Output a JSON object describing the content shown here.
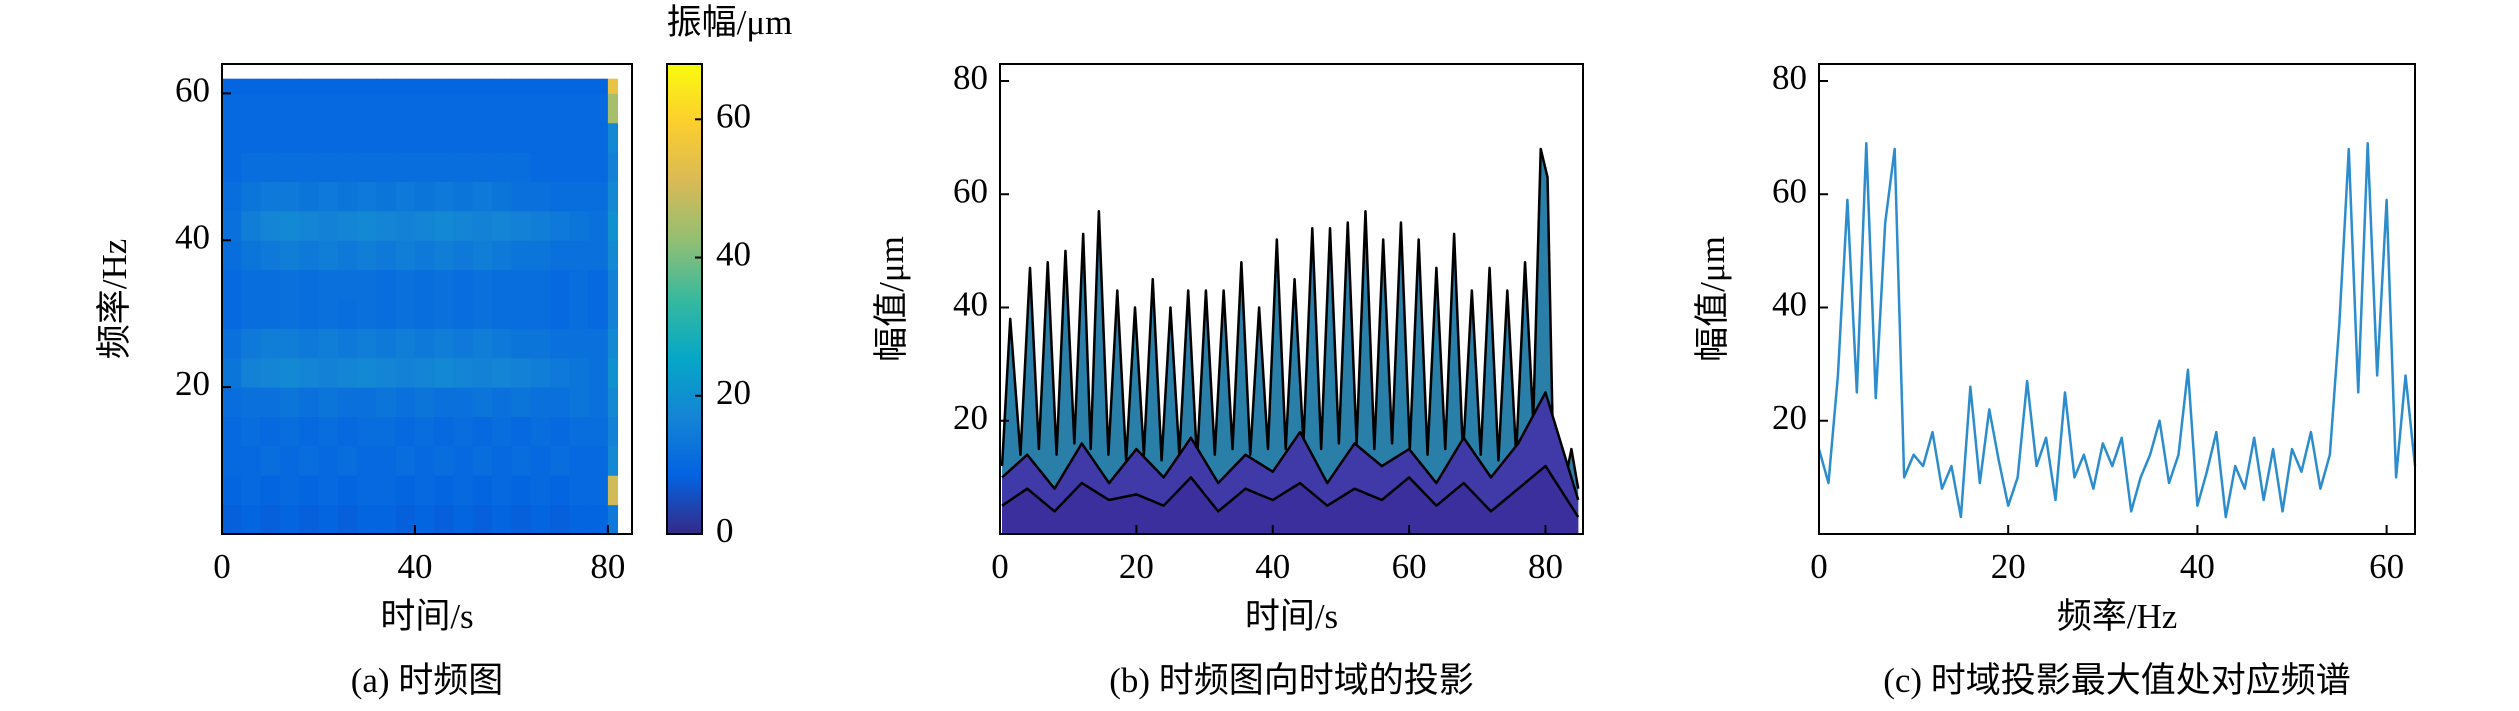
{
  "chart_data": [
    {
      "type": "heatmap",
      "caption": "(a) 时频图",
      "xlabel": "时间/s",
      "ylabel": "频率/Hz",
      "colorbar_label": "振幅/μm",
      "colormap": "parula",
      "xbins": [
        0,
        4,
        8,
        12,
        16,
        20,
        24,
        28,
        32,
        36,
        40,
        44,
        48,
        52,
        56,
        60,
        64,
        68,
        72,
        76,
        80,
        82
      ],
      "ybins": [
        0,
        4,
        8,
        12,
        16,
        20,
        24,
        28,
        32,
        36,
        40,
        44,
        48,
        52,
        56,
        60,
        62
      ],
      "z": [
        [
          8,
          9,
          8,
          9,
          8,
          9,
          8,
          9,
          9,
          8,
          9,
          8,
          9,
          8,
          9,
          8,
          9,
          8,
          9,
          9,
          14
        ],
        [
          9,
          10,
          9,
          10,
          9,
          10,
          9,
          10,
          10,
          9,
          10,
          9,
          10,
          9,
          10,
          9,
          10,
          9,
          10,
          10,
          50
        ],
        [
          10,
          10,
          11,
          10,
          11,
          10,
          11,
          10,
          10,
          11,
          10,
          11,
          10,
          11,
          10,
          11,
          10,
          11,
          10,
          10,
          18
        ],
        [
          10,
          11,
          10,
          11,
          10,
          11,
          10,
          11,
          11,
          10,
          11,
          10,
          11,
          10,
          11,
          10,
          11,
          10,
          11,
          11,
          16
        ],
        [
          11,
          12,
          12,
          13,
          12,
          13,
          12,
          12,
          13,
          12,
          13,
          12,
          12,
          13,
          12,
          13,
          12,
          12,
          13,
          12,
          18
        ],
        [
          13,
          16,
          17,
          18,
          17,
          16,
          17,
          18,
          17,
          16,
          17,
          18,
          17,
          16,
          17,
          16,
          15,
          14,
          13,
          12,
          20
        ],
        [
          12,
          14,
          15,
          15,
          14,
          15,
          14,
          15,
          14,
          15,
          14,
          15,
          14,
          15,
          14,
          13,
          13,
          12,
          12,
          12,
          18
        ],
        [
          10,
          11,
          11,
          12,
          11,
          12,
          11,
          12,
          11,
          12,
          11,
          12,
          11,
          12,
          11,
          11,
          11,
          10,
          11,
          10,
          16
        ],
        [
          10,
          11,
          11,
          12,
          11,
          12,
          12,
          12,
          11,
          12,
          11,
          12,
          11,
          12,
          11,
          11,
          11,
          10,
          11,
          10,
          16
        ],
        [
          11,
          13,
          14,
          15,
          14,
          15,
          14,
          15,
          14,
          15,
          14,
          15,
          14,
          15,
          14,
          13,
          13,
          12,
          12,
          12,
          18
        ],
        [
          12,
          15,
          17,
          18,
          17,
          16,
          17,
          18,
          17,
          16,
          17,
          18,
          17,
          16,
          17,
          16,
          15,
          14,
          13,
          12,
          20
        ],
        [
          11,
          13,
          14,
          14,
          13,
          14,
          13,
          14,
          13,
          14,
          13,
          14,
          13,
          14,
          13,
          12,
          12,
          11,
          11,
          11,
          18
        ],
        [
          10,
          11,
          11,
          11,
          11,
          11,
          11,
          11,
          11,
          11,
          11,
          11,
          11,
          11,
          11,
          11,
          10,
          10,
          10,
          10,
          16
        ],
        [
          10,
          10,
          10,
          10,
          10,
          10,
          10,
          10,
          10,
          10,
          10,
          10,
          10,
          10,
          10,
          10,
          10,
          10,
          10,
          10,
          18
        ],
        [
          10,
          10,
          10,
          10,
          10,
          10,
          10,
          10,
          10,
          10,
          10,
          10,
          10,
          10,
          10,
          10,
          10,
          10,
          10,
          10,
          45
        ],
        [
          9,
          9,
          9,
          9,
          9,
          9,
          9,
          9,
          9,
          9,
          9,
          9,
          9,
          9,
          9,
          9,
          9,
          9,
          9,
          9,
          55
        ]
      ],
      "xlim": [
        0,
        85
      ],
      "ylim": [
        0,
        64
      ],
      "xticks": [
        0,
        40,
        80
      ],
      "yticks": [
        20,
        40,
        60
      ],
      "clim": [
        0,
        68
      ],
      "cticks": [
        0,
        20,
        40,
        60
      ]
    },
    {
      "type": "area",
      "caption": "(b) 时频图向时域的投影",
      "xlabel": "时间/s",
      "ylabel": "幅值/μm",
      "edge_color": "#000000",
      "xlim": [
        0,
        85.5
      ],
      "ylim": [
        0,
        83
      ],
      "xticks": [
        0,
        20,
        40,
        60,
        80
      ],
      "yticks": [
        20,
        40,
        60,
        80
      ],
      "series": [
        {
          "color": "#2a7fa8",
          "x": [
            0.3,
            1.5,
            3,
            4.4,
            5.7,
            7,
            8.3,
            9.6,
            10.9,
            12.2,
            13.3,
            14.5,
            15.9,
            17.2,
            18.5,
            19.8,
            21.1,
            22.4,
            23.7,
            25,
            26.3,
            27.6,
            28.9,
            30.2,
            31.5,
            32.8,
            34.1,
            35.4,
            36.7,
            38,
            39.3,
            40.6,
            41.9,
            43.2,
            44.5,
            45.8,
            47.1,
            48.4,
            49.7,
            51,
            52.3,
            53.6,
            54.9,
            56.2,
            57.5,
            58.8,
            60.1,
            61.4,
            62.7,
            64,
            65.3,
            66.6,
            67.9,
            69.2,
            70.5,
            71.8,
            73.1,
            74.4,
            75.7,
            77,
            78.2,
            79.3,
            80.3,
            81.2,
            82.5,
            83.8,
            84.8
          ],
          "values": [
            12,
            38,
            14,
            47,
            15,
            48,
            14,
            50,
            16,
            53,
            15,
            57,
            14,
            43,
            13,
            40,
            14,
            45,
            13,
            40,
            14,
            43,
            13,
            43,
            14,
            43,
            15,
            48,
            14,
            40,
            15,
            52,
            15,
            45,
            16,
            54,
            15,
            54,
            16,
            55,
            16,
            57,
            15,
            52,
            16,
            55,
            15,
            52,
            14,
            47,
            15,
            53,
            14,
            43,
            14,
            47,
            13,
            43,
            14,
            48,
            20,
            68,
            63,
            10,
            7,
            15,
            8
          ]
        },
        {
          "color": "#3f3aa8",
          "x": [
            0.3,
            4,
            8,
            12,
            16,
            20,
            24,
            28,
            32,
            36,
            40,
            44,
            48,
            52,
            56,
            60,
            64,
            68,
            72,
            76,
            80,
            84.8
          ],
          "values": [
            10,
            14,
            8,
            16,
            9,
            15,
            10,
            17,
            9,
            14,
            11,
            18,
            9,
            16,
            12,
            15,
            9,
            17,
            10,
            16,
            25,
            6
          ]
        },
        {
          "color": "#3b2f9e",
          "x": [
            0.3,
            4,
            8,
            12,
            16,
            20,
            24,
            28,
            32,
            36,
            40,
            44,
            48,
            52,
            56,
            60,
            64,
            68,
            72,
            76,
            80,
            84.8
          ],
          "values": [
            5,
            8,
            4,
            9,
            6,
            7,
            5,
            10,
            4,
            8,
            6,
            9,
            5,
            8,
            6,
            10,
            5,
            9,
            4,
            8,
            12,
            3
          ]
        }
      ]
    },
    {
      "type": "line",
      "caption": "(c) 时域投影最大值处对应频谱",
      "xlabel": "频率/Hz",
      "ylabel": "幅值/μm",
      "color": "#2c8ccc",
      "xlim": [
        0,
        63
      ],
      "ylim": [
        0,
        83
      ],
      "xticks": [
        0,
        20,
        40,
        60
      ],
      "yticks": [
        20,
        40,
        60,
        80
      ],
      "x": [
        0,
        1,
        2,
        3,
        4,
        5,
        6,
        7,
        8,
        9,
        10,
        11,
        12,
        13,
        14,
        15,
        16,
        17,
        18,
        19,
        20,
        21,
        22,
        23,
        24,
        25,
        26,
        27,
        28,
        29,
        30,
        31,
        32,
        33,
        34,
        35,
        36,
        37,
        38,
        39,
        40,
        41,
        42,
        43,
        44,
        45,
        46,
        47,
        48,
        49,
        50,
        51,
        52,
        53,
        54,
        55,
        56,
        57,
        58,
        59,
        60,
        61,
        62,
        63
      ],
      "values": [
        15,
        9,
        28,
        59,
        25,
        69,
        24,
        55,
        68,
        10,
        14,
        12,
        18,
        8,
        12,
        3,
        26,
        9,
        22,
        13,
        5,
        10,
        27,
        12,
        17,
        6,
        25,
        10,
        14,
        8,
        16,
        12,
        17,
        4,
        10,
        14,
        20,
        9,
        14,
        29,
        5,
        11,
        18,
        3,
        12,
        8,
        17,
        6,
        15,
        4,
        15,
        11,
        18,
        8,
        14,
        37,
        68,
        25,
        69,
        28,
        59,
        10,
        28,
        12
      ]
    }
  ]
}
